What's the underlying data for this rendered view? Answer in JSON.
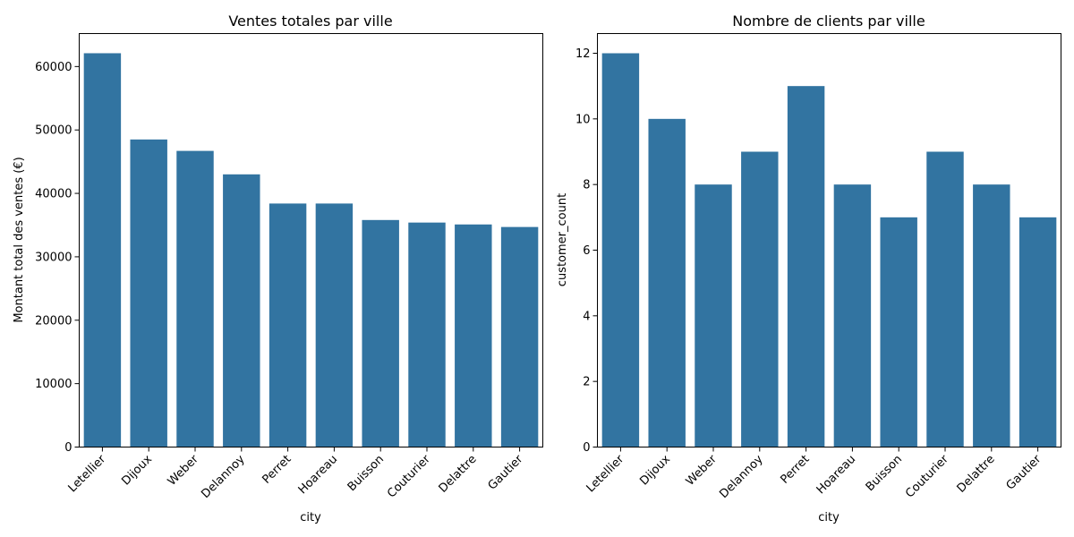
{
  "chart_data": [
    {
      "type": "bar",
      "title": "Ventes totales par ville",
      "xlabel": "city",
      "ylabel": "Montant total des ventes (€)",
      "categories": [
        "Letellier",
        "Dijoux",
        "Weber",
        "Delannoy",
        "Perret",
        "Hoareau",
        "Buisson",
        "Couturier",
        "Delattre",
        "Gautier"
      ],
      "values": [
        62100,
        48500,
        46700,
        43000,
        38400,
        38400,
        35800,
        35400,
        35100,
        34700
      ],
      "ylim": [
        0,
        65200
      ],
      "yticks": [
        0,
        10000,
        20000,
        30000,
        40000,
        50000,
        60000
      ],
      "grid": false,
      "bar_color": "#3274a1"
    },
    {
      "type": "bar",
      "title": "Nombre de clients par ville",
      "xlabel": "city",
      "ylabel": "customer_count",
      "categories": [
        "Letellier",
        "Dijoux",
        "Weber",
        "Delannoy",
        "Perret",
        "Hoareau",
        "Buisson",
        "Couturier",
        "Delattre",
        "Gautier"
      ],
      "values": [
        12,
        10,
        8,
        9,
        11,
        8,
        7,
        9,
        8,
        7
      ],
      "ylim": [
        0,
        12.6
      ],
      "yticks": [
        0,
        2,
        4,
        6,
        8,
        10,
        12
      ],
      "grid": false,
      "bar_color": "#3274a1"
    }
  ]
}
